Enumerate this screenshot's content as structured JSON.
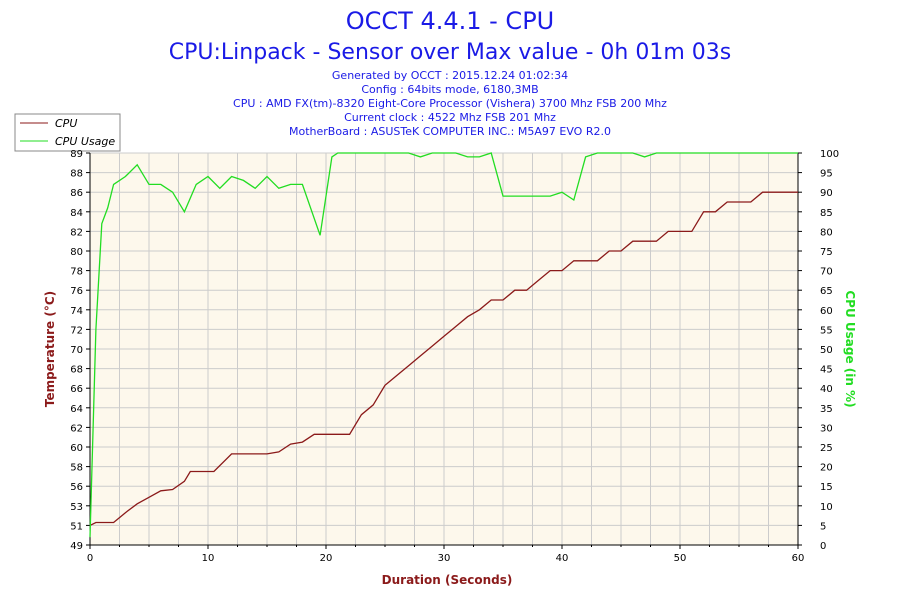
{
  "header": {
    "title": "OCCT 4.4.1 - CPU",
    "subtitle": "CPU:Linpack - Sensor over Max value - 0h 01m 03s",
    "info": [
      "Generated by OCCT : 2015.12.24 01:02:34",
      "Config : 64bits mode, 6180,3MB",
      "CPU : AMD FX(tm)-8320 Eight-Core Processor (Vishera) 3700 Mhz FSB 200 Mhz",
      "Current clock : 4522 Mhz FSB 201 Mhz",
      "MotherBoard : ASUSTeK COMPUTER INC.: M5A97 EVO R2.0"
    ]
  },
  "colors": {
    "cpu_temp": "#8b1a1a",
    "cpu_usage": "#22dd22",
    "plot_bg": "#fdf8ec",
    "grid": "#cccccc",
    "title": "#1a1ae6"
  },
  "chart_data": {
    "type": "line",
    "xlabel": "Duration (Seconds)",
    "ylabel": "Temperature (°C)",
    "y2label": "CPU Usage (in %)",
    "xlim": [
      0,
      60
    ],
    "ylim": [
      49,
      89
    ],
    "y2lim": [
      0,
      100
    ],
    "x_ticks": [
      "0",
      "10",
      "20",
      "30",
      "40",
      "50",
      "60"
    ],
    "y_ticks": [
      "49",
      "51",
      "53",
      "56",
      "58",
      "60",
      "62",
      "64",
      "66",
      "68",
      "70",
      "72",
      "74",
      "76",
      "78",
      "80",
      "82",
      "84",
      "86",
      "88",
      "89"
    ],
    "y2_ticks": [
      "0",
      "5",
      "10",
      "15",
      "20",
      "25",
      "30",
      "35",
      "40",
      "45",
      "50",
      "55",
      "60",
      "65",
      "70",
      "75",
      "80",
      "85",
      "90",
      "95",
      "100"
    ],
    "grid": true,
    "legend_position": "top-left",
    "series": [
      {
        "name": "CPU",
        "axis": "left",
        "points": [
          [
            0,
            51
          ],
          [
            0.5,
            51.3
          ],
          [
            2,
            51.3
          ],
          [
            3,
            52.3
          ],
          [
            4,
            53.3
          ],
          [
            5,
            54.3
          ],
          [
            6,
            55.3
          ],
          [
            7,
            55.5
          ],
          [
            8,
            56.5
          ],
          [
            8.5,
            57.5
          ],
          [
            10,
            57.5
          ],
          [
            10.5,
            57.5
          ],
          [
            12,
            59.3
          ],
          [
            13,
            59.3
          ],
          [
            14,
            59.3
          ],
          [
            15,
            59.3
          ],
          [
            16,
            59.5
          ],
          [
            17,
            60.3
          ],
          [
            18,
            60.5
          ],
          [
            19,
            61.3
          ],
          [
            20,
            61.3
          ],
          [
            21,
            61.3
          ],
          [
            22,
            61.3
          ],
          [
            23,
            63.3
          ],
          [
            24,
            64.3
          ],
          [
            25,
            66.3
          ],
          [
            26,
            67.3
          ],
          [
            27,
            68.3
          ],
          [
            28,
            69.3
          ],
          [
            29,
            70.3
          ],
          [
            30,
            71.3
          ],
          [
            31,
            72.3
          ],
          [
            32,
            73.3
          ],
          [
            33,
            74
          ],
          [
            34,
            75
          ],
          [
            35,
            75
          ],
          [
            36,
            76
          ],
          [
            37,
            76
          ],
          [
            38,
            77
          ],
          [
            39,
            78
          ],
          [
            40,
            78
          ],
          [
            41,
            79
          ],
          [
            42,
            79
          ],
          [
            43,
            79
          ],
          [
            44,
            80
          ],
          [
            45,
            80
          ],
          [
            46,
            81
          ],
          [
            47,
            81
          ],
          [
            48,
            81
          ],
          [
            49,
            82
          ],
          [
            50,
            82
          ],
          [
            51,
            82
          ],
          [
            52,
            84
          ],
          [
            53,
            84
          ],
          [
            54,
            85
          ],
          [
            55,
            85
          ],
          [
            56,
            85
          ],
          [
            57,
            86
          ],
          [
            58,
            86
          ],
          [
            60,
            86
          ]
        ]
      },
      {
        "name": "CPU Usage",
        "axis": "right",
        "points": [
          [
            0,
            2
          ],
          [
            0.5,
            55
          ],
          [
            1,
            82
          ],
          [
            1.5,
            86
          ],
          [
            2,
            92
          ],
          [
            3,
            94
          ],
          [
            4,
            97
          ],
          [
            5,
            92
          ],
          [
            6,
            92
          ],
          [
            7,
            90
          ],
          [
            8,
            85
          ],
          [
            9,
            92
          ],
          [
            10,
            94
          ],
          [
            11,
            91
          ],
          [
            12,
            94
          ],
          [
            13,
            93
          ],
          [
            14,
            91
          ],
          [
            15,
            94
          ],
          [
            16,
            91
          ],
          [
            17,
            92
          ],
          [
            18,
            92
          ],
          [
            19.5,
            79
          ],
          [
            20.5,
            99
          ],
          [
            21,
            100
          ],
          [
            22,
            100
          ],
          [
            23,
            100
          ],
          [
            24,
            100
          ],
          [
            25,
            100
          ],
          [
            26,
            100
          ],
          [
            27,
            100
          ],
          [
            28,
            99
          ],
          [
            29,
            100
          ],
          [
            30,
            100
          ],
          [
            31,
            100
          ],
          [
            32,
            99
          ],
          [
            33,
            99
          ],
          [
            34,
            100
          ],
          [
            35,
            89
          ],
          [
            36,
            89
          ],
          [
            37,
            89
          ],
          [
            38,
            89
          ],
          [
            39,
            89
          ],
          [
            40,
            90
          ],
          [
            41,
            88
          ],
          [
            42,
            99
          ],
          [
            43,
            100
          ],
          [
            44,
            100
          ],
          [
            45,
            100
          ],
          [
            46,
            100
          ],
          [
            47,
            99
          ],
          [
            48,
            100
          ],
          [
            49,
            100
          ],
          [
            50,
            100
          ],
          [
            51,
            100
          ],
          [
            52,
            100
          ],
          [
            53,
            100
          ],
          [
            54,
            100
          ],
          [
            55,
            100
          ],
          [
            56,
            100
          ],
          [
            57,
            100
          ],
          [
            58,
            100
          ],
          [
            60,
            100
          ]
        ]
      }
    ]
  }
}
